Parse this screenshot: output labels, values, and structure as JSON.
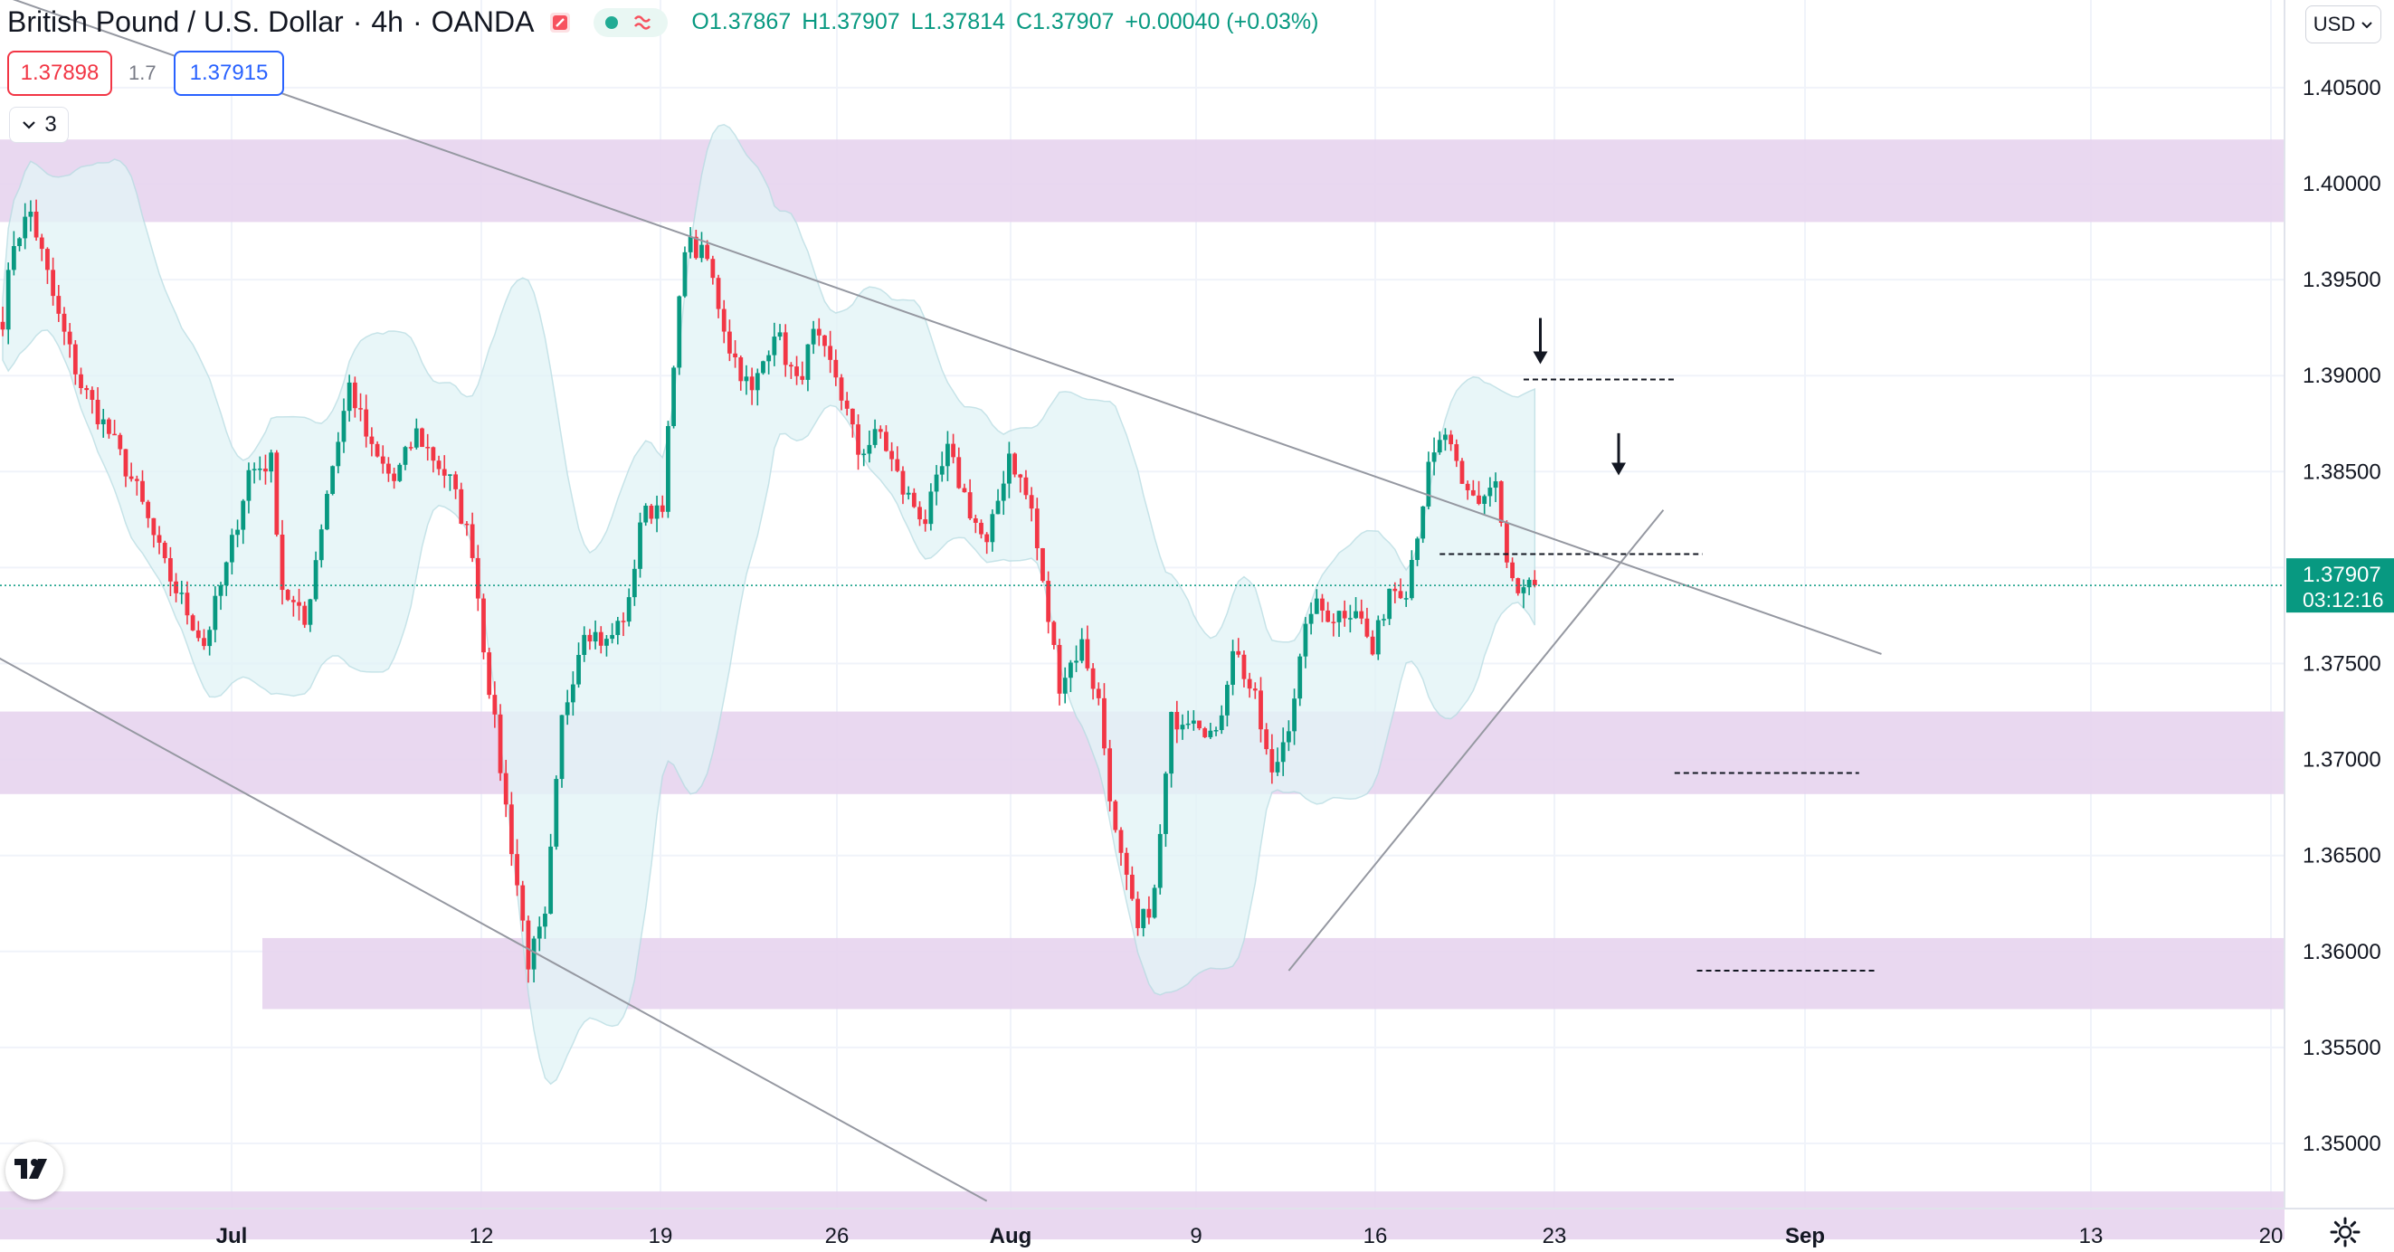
{
  "header": {
    "symbol": "British Pound / U.S. Dollar",
    "interval": "4h",
    "exchange": "OANDA",
    "ohlc": {
      "open": "O1.37867",
      "high": "H1.37907",
      "low": "L1.37814",
      "close": "C1.37907",
      "change": "+0.00040 (+0.03%)"
    },
    "sell_price": "1.37898",
    "spread": "1.7",
    "buy_price": "1.37915",
    "indicators_count": "3",
    "currency": "USD"
  },
  "price_axis": {
    "ticks": [
      "1.40500",
      "1.40000",
      "1.39500",
      "1.39000",
      "1.38500",
      "1.38000",
      "1.37500",
      "1.37000",
      "1.36500",
      "1.36000",
      "1.35500",
      "1.35000"
    ],
    "last_price": "1.37907",
    "countdown": "03:12:16"
  },
  "time_axis": {
    "ticks": [
      {
        "label": "Jul",
        "major": true
      },
      {
        "label": "12",
        "major": false
      },
      {
        "label": "19",
        "major": false
      },
      {
        "label": "26",
        "major": false
      },
      {
        "label": "Aug",
        "major": true
      },
      {
        "label": "9",
        "major": false
      },
      {
        "label": "16",
        "major": false
      },
      {
        "label": "23",
        "major": false
      },
      {
        "label": "Sep",
        "major": true
      },
      {
        "label": "13",
        "major": false
      },
      {
        "label": "20",
        "major": false
      }
    ]
  },
  "colors": {
    "up": "#089981",
    "down": "#f23645",
    "zone": "#e7d4ee",
    "bands_fill": "#e3f4f7",
    "last_price": "#089981",
    "sell_box": "#f23645",
    "buy_box": "#2962ff"
  },
  "chart_data": {
    "type": "candlestick",
    "symbol": "British Pound / U.S. Dollar",
    "interval": "4h",
    "ylim": [
      1.3465,
      1.4075
    ],
    "x_ticks": [
      "Jul",
      "12",
      "19",
      "26",
      "Aug",
      "9",
      "16",
      "23",
      "Sep",
      "13",
      "20"
    ],
    "anchors": [
      {
        "t": 0,
        "p": 1.393
      },
      {
        "t": 2,
        "p": 1.397
      },
      {
        "t": 5,
        "p": 1.3985
      },
      {
        "t": 10,
        "p": 1.393
      },
      {
        "t": 14,
        "p": 1.3895
      },
      {
        "t": 19,
        "p": 1.387
      },
      {
        "t": 24,
        "p": 1.384
      },
      {
        "t": 29,
        "p": 1.38
      },
      {
        "t": 36,
        "p": 1.376
      },
      {
        "t": 40,
        "p": 1.38
      },
      {
        "t": 44,
        "p": 1.385
      },
      {
        "t": 48,
        "p": 1.3855
      },
      {
        "t": 50,
        "p": 1.379
      },
      {
        "t": 54,
        "p": 1.377
      },
      {
        "t": 58,
        "p": 1.384
      },
      {
        "t": 62,
        "p": 1.3895
      },
      {
        "t": 66,
        "p": 1.386
      },
      {
        "t": 70,
        "p": 1.3845
      },
      {
        "t": 74,
        "p": 1.387
      },
      {
        "t": 80,
        "p": 1.3845
      },
      {
        "t": 84,
        "p": 1.381
      },
      {
        "t": 86,
        "p": 1.376
      },
      {
        "t": 90,
        "p": 1.3675
      },
      {
        "t": 94,
        "p": 1.3595
      },
      {
        "t": 97,
        "p": 1.3615
      },
      {
        "t": 100,
        "p": 1.372
      },
      {
        "t": 104,
        "p": 1.377
      },
      {
        "t": 108,
        "p": 1.376
      },
      {
        "t": 112,
        "p": 1.378
      },
      {
        "t": 114,
        "p": 1.3825
      },
      {
        "t": 118,
        "p": 1.3835
      },
      {
        "t": 122,
        "p": 1.397
      },
      {
        "t": 126,
        "p": 1.396
      },
      {
        "t": 130,
        "p": 1.3915
      },
      {
        "t": 134,
        "p": 1.389
      },
      {
        "t": 138,
        "p": 1.3925
      },
      {
        "t": 142,
        "p": 1.3895
      },
      {
        "t": 145,
        "p": 1.392
      },
      {
        "t": 149,
        "p": 1.39
      },
      {
        "t": 153,
        "p": 1.386
      },
      {
        "t": 157,
        "p": 1.387
      },
      {
        "t": 161,
        "p": 1.384
      },
      {
        "t": 165,
        "p": 1.3825
      },
      {
        "t": 169,
        "p": 1.386
      },
      {
        "t": 173,
        "p": 1.383
      },
      {
        "t": 176,
        "p": 1.381
      },
      {
        "t": 180,
        "p": 1.386
      },
      {
        "t": 184,
        "p": 1.383
      },
      {
        "t": 186,
        "p": 1.379
      },
      {
        "t": 189,
        "p": 1.374
      },
      {
        "t": 193,
        "p": 1.376
      },
      {
        "t": 196,
        "p": 1.373
      },
      {
        "t": 199,
        "p": 1.366
      },
      {
        "t": 203,
        "p": 1.361
      },
      {
        "t": 206,
        "p": 1.363
      },
      {
        "t": 209,
        "p": 1.372
      },
      {
        "t": 213,
        "p": 1.3725
      },
      {
        "t": 217,
        "p": 1.371
      },
      {
        "t": 220,
        "p": 1.376
      },
      {
        "t": 224,
        "p": 1.373
      },
      {
        "t": 227,
        "p": 1.369
      },
      {
        "t": 230,
        "p": 1.372
      },
      {
        "t": 234,
        "p": 1.378
      },
      {
        "t": 238,
        "p": 1.3775
      },
      {
        "t": 242,
        "p": 1.378
      },
      {
        "t": 245,
        "p": 1.3755
      },
      {
        "t": 248,
        "p": 1.379
      },
      {
        "t": 251,
        "p": 1.379
      },
      {
        "t": 253,
        "p": 1.382
      },
      {
        "t": 255,
        "p": 1.385
      },
      {
        "t": 258,
        "p": 1.387
      },
      {
        "t": 261,
        "p": 1.384
      },
      {
        "t": 264,
        "p": 1.3835
      },
      {
        "t": 267,
        "p": 1.3845
      },
      {
        "t": 269,
        "p": 1.38
      },
      {
        "t": 271,
        "p": 1.3785
      },
      {
        "t": 274,
        "p": 1.3791
      }
    ],
    "zones": [
      {
        "low": 1.398,
        "high": 1.4023
      },
      {
        "low": 1.3682,
        "high": 1.3725
      },
      {
        "low": 1.357,
        "high": 1.3607
      },
      {
        "low": 1.345,
        "high": 1.3475
      }
    ],
    "trendlines": [
      {
        "from": [
          -2,
          1.41
        ],
        "to": [
          336,
          1.3755
        ]
      },
      {
        "from": [
          -2,
          1.3755
        ],
        "to": [
          176,
          1.347
        ]
      },
      {
        "from": [
          230,
          1.359
        ],
        "to": [
          297,
          1.383
        ]
      }
    ],
    "levels": [
      {
        "from": [
          272,
          1.3898
        ],
        "to": [
          299,
          1.3898
        ]
      },
      {
        "from": [
          257,
          1.3807
        ],
        "to": [
          304,
          1.3807
        ]
      },
      {
        "from": [
          299,
          1.3693
        ],
        "to": [
          332,
          1.3693
        ]
      },
      {
        "from": [
          303,
          1.359
        ],
        "to": [
          335,
          1.359
        ]
      }
    ],
    "arrows": [
      {
        "t": 275,
        "p_top": 1.393,
        "p_tip": 1.3906
      },
      {
        "t": 289,
        "p_top": 1.387
      },
      {
        "t": 289,
        "p_tip": 1.3848
      }
    ],
    "last_price": 1.37907
  }
}
